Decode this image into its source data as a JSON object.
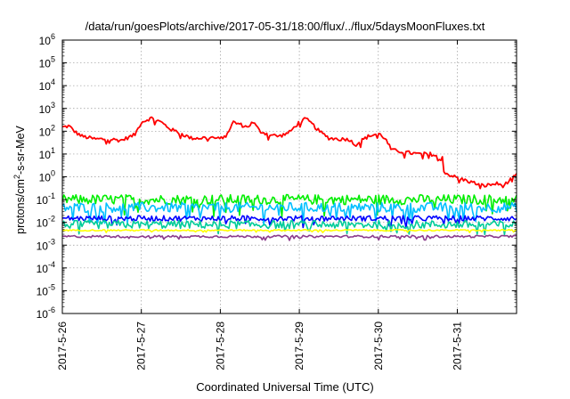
{
  "chart_data": {
    "type": "line",
    "title": "/data/run/goesPlots/archive/2017-05-31/18:00/flux/../flux/5daysMoonFluxes.txt",
    "xlabel": "Coordinated Universal Time (UTC)",
    "ylabel": "protons/cm2-s-sr-MeV",
    "ylabel_parts": {
      "pre": "protons/cm",
      "sup": "2",
      "post": "-s-sr-MeV"
    },
    "y_scale": "log",
    "ylim": [
      1e-06,
      1000000.0
    ],
    "y_ticks": [
      {
        "exp": -6,
        "base": "10",
        "sup": "-6"
      },
      {
        "exp": -5,
        "base": "10",
        "sup": "-5"
      },
      {
        "exp": -4,
        "base": "10",
        "sup": "-4"
      },
      {
        "exp": -3,
        "base": "10",
        "sup": "-3"
      },
      {
        "exp": -2,
        "base": "10",
        "sup": "-2"
      },
      {
        "exp": -1,
        "base": "10",
        "sup": "-1"
      },
      {
        "exp": 0,
        "base": "10",
        "sup": "0"
      },
      {
        "exp": 1,
        "base": "10",
        "sup": "1"
      },
      {
        "exp": 2,
        "base": "10",
        "sup": "2"
      },
      {
        "exp": 3,
        "base": "10",
        "sup": "3"
      },
      {
        "exp": 4,
        "base": "10",
        "sup": "4"
      },
      {
        "exp": 5,
        "base": "10",
        "sup": "5"
      },
      {
        "exp": 6,
        "base": "10",
        "sup": "6"
      }
    ],
    "xlim": [
      "2017-05-26",
      "2017-05-31T18:00"
    ],
    "x_ticks": [
      "2017-5-26",
      "2017-5-27",
      "2017-5-28",
      "2017-5-29",
      "2017-5-30",
      "2017-5-31"
    ],
    "grid": true,
    "legend": "none",
    "series": [
      {
        "color": "#ff0000",
        "jitter": 0.08,
        "points": [
          [
            "2017-05-26T00:00",
            150
          ],
          [
            "2017-05-26T02:00",
            170
          ],
          [
            "2017-05-26T04:00",
            90
          ],
          [
            "2017-05-26T06:00",
            60
          ],
          [
            "2017-05-26T10:00",
            45
          ],
          [
            "2017-05-26T14:00",
            45
          ],
          [
            "2017-05-26T18:00",
            40
          ],
          [
            "2017-05-26T22:00",
            70
          ],
          [
            "2017-05-27T00:00",
            250
          ],
          [
            "2017-05-27T03:00",
            380
          ],
          [
            "2017-05-27T06:00",
            250
          ],
          [
            "2017-05-27T09:00",
            120
          ],
          [
            "2017-05-27T12:00",
            80
          ],
          [
            "2017-05-27T15:00",
            50
          ],
          [
            "2017-05-27T18:00",
            50
          ],
          [
            "2017-05-27T21:00",
            55
          ],
          [
            "2017-05-28T00:00",
            45
          ],
          [
            "2017-05-28T02:00",
            80
          ],
          [
            "2017-05-28T04:00",
            250
          ],
          [
            "2017-05-28T06:00",
            200
          ],
          [
            "2017-05-28T08:00",
            150
          ],
          [
            "2017-05-28T10:00",
            250
          ],
          [
            "2017-05-28T12:00",
            100
          ],
          [
            "2017-05-28T15:00",
            70
          ],
          [
            "2017-05-28T18:00",
            60
          ],
          [
            "2017-05-28T21:00",
            90
          ],
          [
            "2017-05-29T00:00",
            250
          ],
          [
            "2017-05-29T02:00",
            350
          ],
          [
            "2017-05-29T04:00",
            200
          ],
          [
            "2017-05-29T06:00",
            100
          ],
          [
            "2017-05-29T09:00",
            50
          ],
          [
            "2017-05-29T12:00",
            45
          ],
          [
            "2017-05-29T15:00",
            45
          ],
          [
            "2017-05-29T17:00",
            25
          ],
          [
            "2017-05-29T19:00",
            40
          ],
          [
            "2017-05-29T21:00",
            60
          ],
          [
            "2017-05-30T00:00",
            80
          ],
          [
            "2017-05-30T02:00",
            50
          ],
          [
            "2017-05-30T04:00",
            15
          ],
          [
            "2017-05-30T08:00",
            12
          ],
          [
            "2017-05-30T12:00",
            10
          ],
          [
            "2017-05-30T16:00",
            10
          ],
          [
            "2017-05-30T18:00",
            8
          ],
          [
            "2017-05-30T19:30",
            8
          ],
          [
            "2017-05-30T20:00",
            1.5
          ],
          [
            "2017-05-31T00:00",
            0.9
          ],
          [
            "2017-05-31T04:00",
            0.6
          ],
          [
            "2017-05-31T08:00",
            0.4
          ],
          [
            "2017-05-31T12:00",
            0.5
          ],
          [
            "2017-05-31T14:00",
            0.4
          ],
          [
            "2017-05-31T16:00",
            0.7
          ],
          [
            "2017-05-31T18:00",
            1.2
          ]
        ]
      },
      {
        "color": "#00ee00",
        "jitter": 0.22,
        "points": [
          [
            "2017-05-26T00:00",
            0.1
          ],
          [
            "2017-05-31T18:00",
            0.1
          ]
        ]
      },
      {
        "color": "#00bfff",
        "jitter": 0.22,
        "points": [
          [
            "2017-05-26T00:00",
            0.045
          ],
          [
            "2017-05-31T18:00",
            0.045
          ]
        ]
      },
      {
        "color": "#0000ff",
        "jitter": 0.12,
        "points": [
          [
            "2017-05-26T00:00",
            0.015
          ],
          [
            "2017-05-31T18:00",
            0.015
          ]
        ]
      },
      {
        "color": "#00cc99",
        "jitter": 0.18,
        "points": [
          [
            "2017-05-26T00:00",
            0.008
          ],
          [
            "2017-05-31T18:00",
            0.008
          ]
        ]
      },
      {
        "color": "#ffff00",
        "jitter": 0.03,
        "points": [
          [
            "2017-05-26T00:00",
            0.0045
          ],
          [
            "2017-05-31T18:00",
            0.0045
          ]
        ]
      },
      {
        "color": "#8b3a8b",
        "jitter": 0.05,
        "points": [
          [
            "2017-05-26T00:00",
            0.0024
          ],
          [
            "2017-05-31T18:00",
            0.0024
          ]
        ]
      }
    ]
  }
}
